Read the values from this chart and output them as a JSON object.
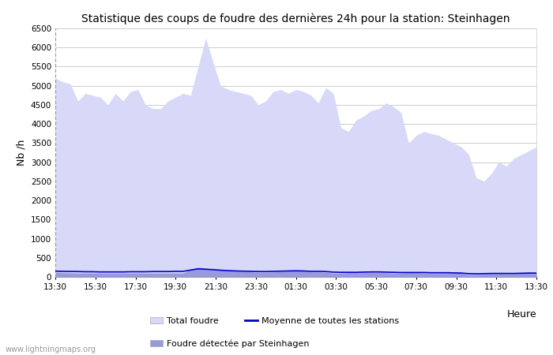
{
  "title": "Statistique des coups de foudre des dernières 24h pour la station: Steinhagen",
  "ylabel": "Nb /h",
  "xlabel": "Heure",
  "watermark": "www.lightningmaps.org",
  "x_ticks": [
    "13:30",
    "15:30",
    "17:30",
    "19:30",
    "21:30",
    "23:30",
    "01:30",
    "03:30",
    "05:30",
    "07:30",
    "09:30",
    "11:30",
    "13:30"
  ],
  "ylim": [
    0,
    6500
  ],
  "yticks": [
    0,
    500,
    1000,
    1500,
    2000,
    2500,
    3000,
    3500,
    4000,
    4500,
    5000,
    5500,
    6000,
    6500
  ],
  "color_total": "#d8d8f8",
  "color_station": "#9999dd",
  "color_mean_line": "#0000cc",
  "bg_color": "#ffffff",
  "grid_color": "#cccccc",
  "total_foudre": [
    5200,
    5100,
    5050,
    4600,
    4800,
    4750,
    4700,
    4500,
    4800,
    4600,
    4850,
    4900,
    4500,
    4400,
    4400,
    4600,
    4700,
    4800,
    4750,
    5500,
    6250,
    5600,
    5000,
    4900,
    4850,
    4800,
    4750,
    4500,
    4600,
    4850,
    4900,
    4800,
    4900,
    4850,
    4750,
    4550,
    4950,
    4800,
    3900,
    3800,
    4100,
    4200,
    4350,
    4400,
    4550,
    4450,
    4300,
    3500,
    3700,
    3800,
    3750,
    3700,
    3600,
    3500,
    3400,
    3200,
    2600,
    2500,
    2700,
    3000,
    2900,
    3100,
    3200,
    3300,
    3400
  ],
  "station_foudre": [
    120,
    110,
    105,
    100,
    100,
    100,
    100,
    100,
    100,
    100,
    100,
    100,
    100,
    100,
    100,
    100,
    100,
    100,
    200,
    250,
    230,
    200,
    180,
    160,
    150,
    140,
    130,
    120,
    120,
    130,
    140,
    150,
    160,
    150,
    130,
    130,
    120,
    100,
    100,
    110,
    110,
    110,
    120,
    120,
    110,
    100,
    100,
    110,
    110,
    100,
    100,
    100,
    100,
    100,
    90,
    60,
    60,
    70,
    80,
    80,
    80,
    80,
    90,
    100,
    100
  ],
  "mean_line": [
    150,
    145,
    143,
    140,
    135,
    135,
    130,
    130,
    130,
    130,
    135,
    135,
    135,
    140,
    140,
    140,
    145,
    145,
    180,
    210,
    200,
    190,
    175,
    165,
    155,
    150,
    145,
    140,
    140,
    145,
    150,
    155,
    160,
    155,
    145,
    145,
    140,
    125,
    120,
    120,
    120,
    125,
    130,
    130,
    125,
    120,
    115,
    115,
    115,
    115,
    110,
    110,
    110,
    105,
    100,
    85,
    80,
    85,
    90,
    90,
    90,
    90,
    95,
    100,
    100
  ]
}
